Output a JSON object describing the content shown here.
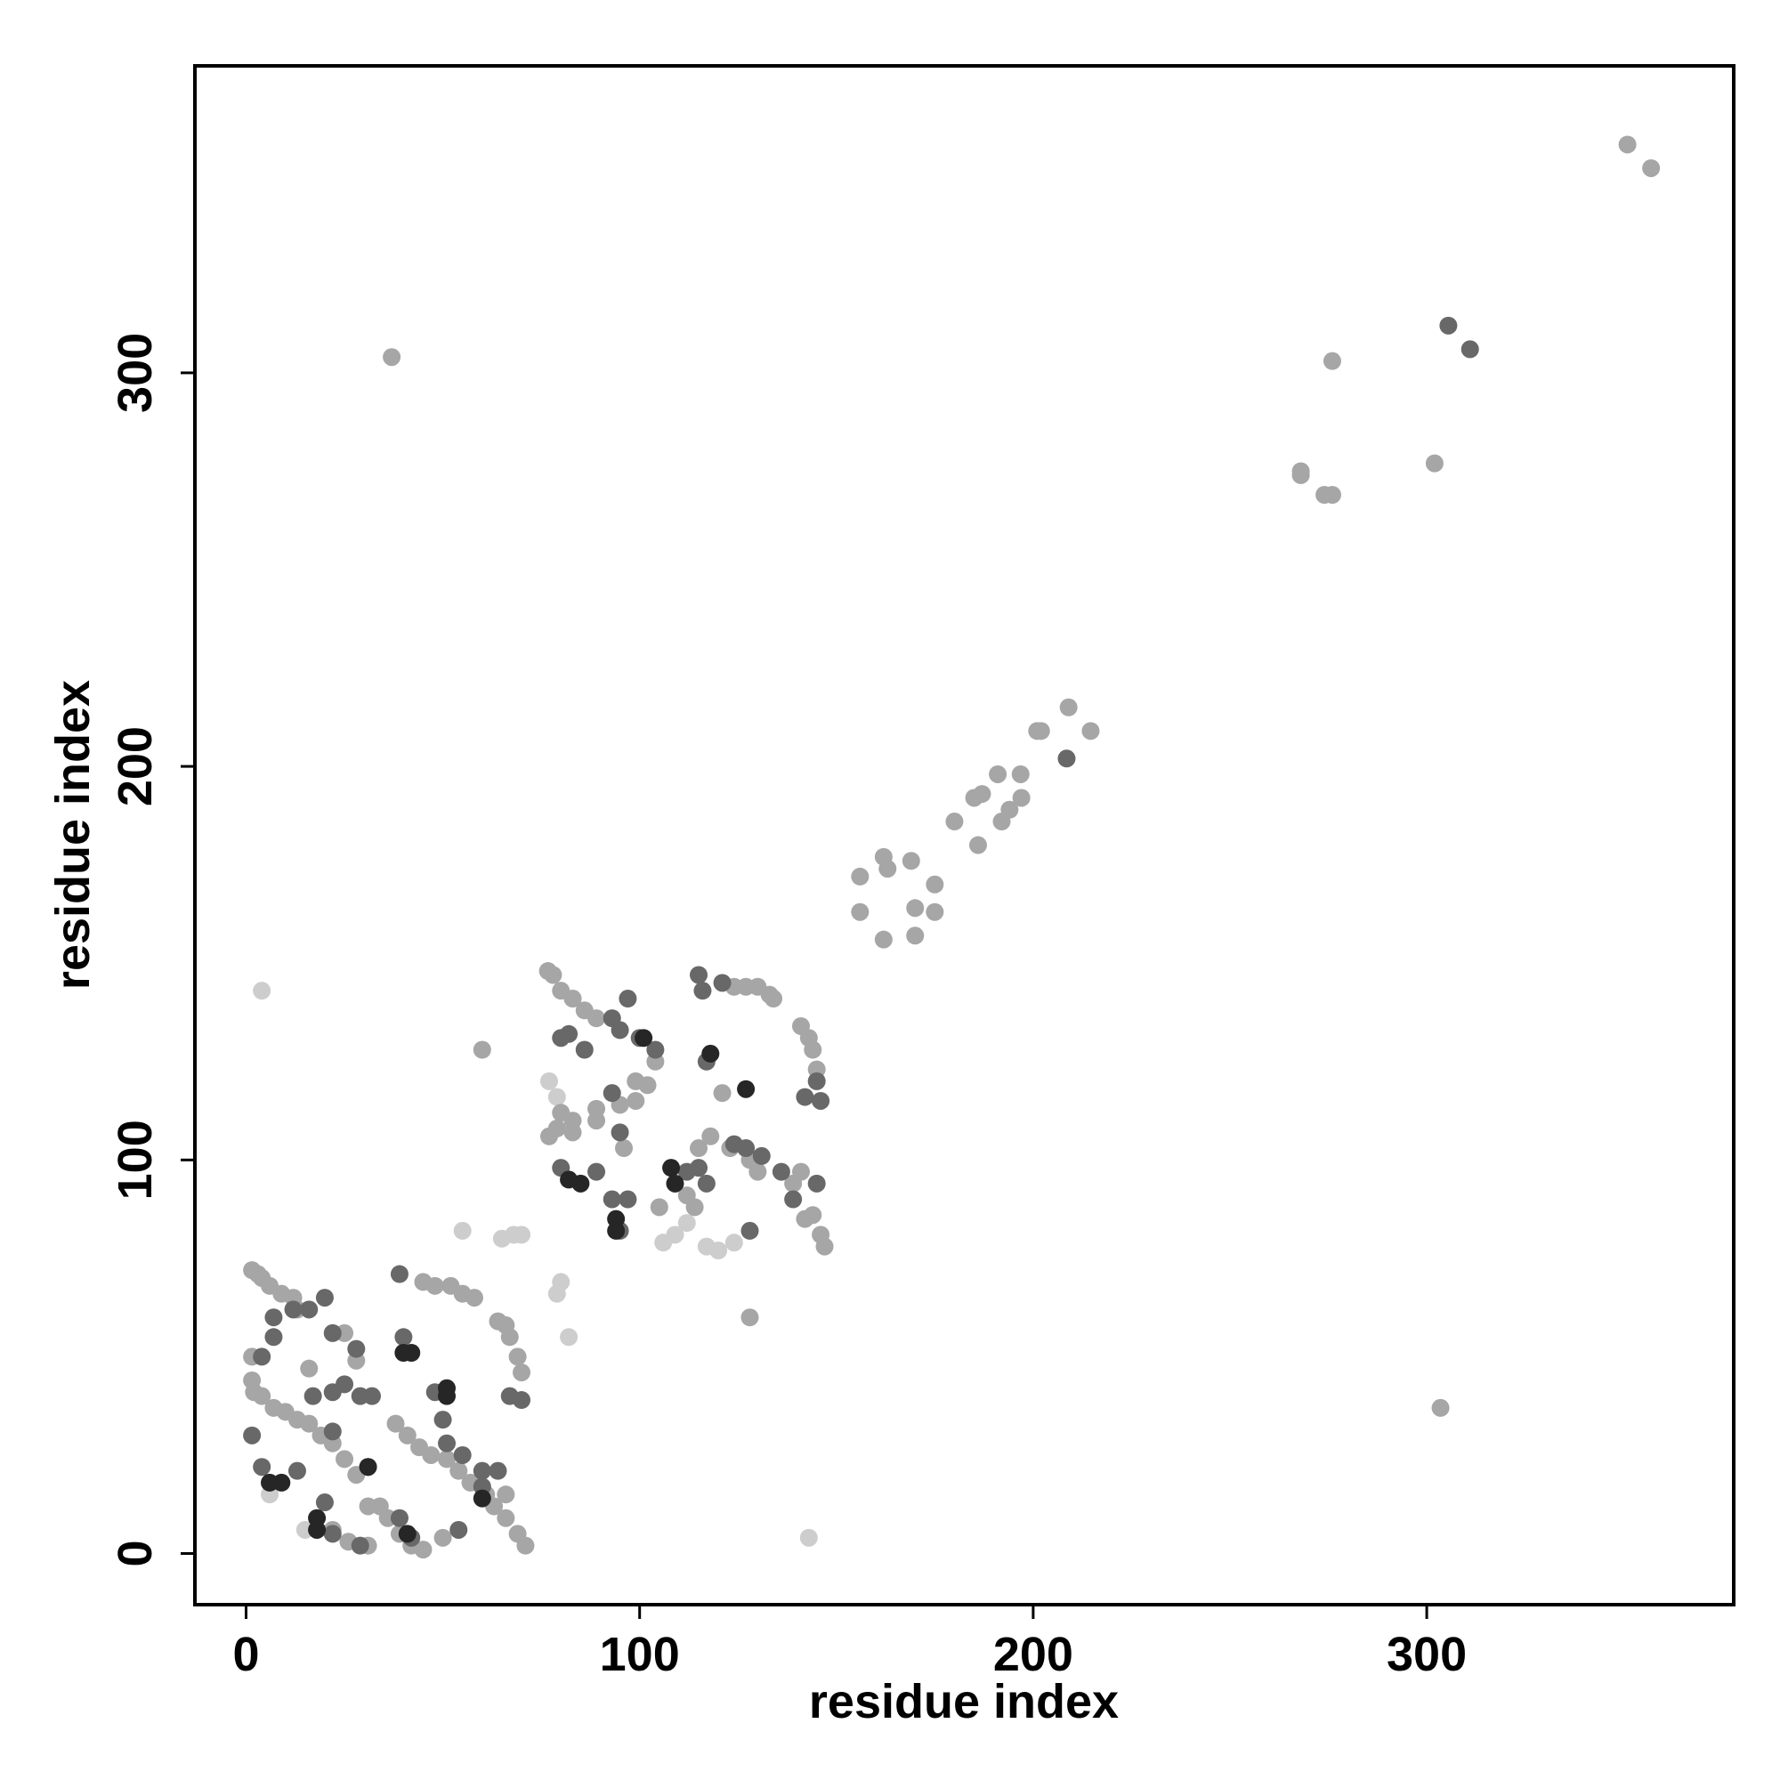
{
  "chart_data": {
    "type": "scatter",
    "x_label": "residue index",
    "y_label": "residue index",
    "xlim": [
      -13,
      378
    ],
    "ylim": [
      -13,
      378
    ],
    "xticks": [
      0,
      100,
      200,
      300
    ],
    "yticks": [
      0,
      100,
      200,
      300
    ],
    "series": [
      {
        "color": "#cdcdcd",
        "x": [
          55,
          65,
          68,
          70,
          79,
          80,
          82,
          143,
          4,
          15,
          6,
          112,
          109,
          106,
          120,
          117,
          83,
          77,
          79,
          124
        ],
        "y": [
          82,
          80,
          81,
          81,
          66,
          69,
          55,
          4,
          143,
          6,
          15,
          84,
          81,
          79,
          77,
          78,
          141,
          120,
          116,
          79
        ]
      },
      {
        "color": "#a6a6a6",
        "x": [
          351,
          357,
          37,
          276,
          302,
          268,
          274,
          276,
          268,
          209,
          201,
          202,
          214.6,
          196.8,
          191,
          187,
          185,
          180,
          186,
          197,
          194,
          192,
          162,
          163,
          169,
          175,
          156,
          156,
          162,
          170,
          170,
          175,
          76.7,
          78,
          80,
          83,
          86,
          89,
          80,
          83,
          89,
          95,
          99,
          77,
          79,
          83,
          115,
          118,
          123,
          128,
          130,
          141,
          139,
          142,
          144,
          146,
          147,
          141,
          143,
          144,
          145,
          130,
          133,
          134,
          124,
          127,
          99,
          102,
          104,
          112,
          114,
          121,
          105,
          96,
          89,
          60,
          128,
          303.5,
          1.5,
          3,
          4,
          6,
          9,
          12,
          13,
          1.5,
          1.5,
          2,
          4,
          7,
          10,
          13,
          16,
          19,
          22,
          25,
          28,
          31,
          34,
          36,
          39,
          42,
          45,
          50,
          38,
          41,
          44,
          47,
          51,
          54,
          57,
          61,
          63,
          66,
          69,
          71,
          45,
          48,
          52,
          55,
          58,
          64,
          66,
          67,
          69,
          70,
          25,
          28,
          16,
          22,
          26,
          31,
          66
        ],
        "y": [
          358,
          352,
          304,
          303,
          277,
          275,
          269,
          269,
          274,
          215,
          209,
          209,
          209,
          198,
          198,
          193,
          192,
          186,
          180,
          192,
          189,
          186,
          177,
          174,
          176,
          170,
          172,
          163,
          156,
          157,
          164,
          163,
          148,
          147,
          143,
          141,
          138,
          136,
          112,
          110,
          113,
          114,
          115,
          106,
          108,
          107,
          103,
          106,
          103,
          100,
          97,
          97,
          94,
          85,
          86,
          81,
          78,
          134,
          131,
          128,
          123,
          144,
          142,
          141,
          144,
          144,
          120,
          119,
          125,
          91,
          88,
          117,
          88,
          103,
          110,
          128,
          60,
          37,
          72,
          71,
          70,
          68,
          66,
          65,
          62,
          50,
          44,
          41,
          40,
          37,
          36,
          34,
          33,
          30,
          28,
          24,
          20,
          12,
          12,
          9,
          5,
          2,
          1,
          4,
          33,
          30,
          27,
          25,
          24,
          21,
          18,
          15,
          12,
          9,
          5,
          2,
          69,
          68,
          68,
          66,
          65,
          59,
          58,
          55,
          50,
          46,
          56,
          49,
          47,
          6,
          3,
          2,
          15
        ]
      },
      {
        "color": "#686868",
        "x": [
          305.5,
          311,
          208.5,
          80,
          82,
          86,
          93,
          97,
          95,
          100,
          104,
          93,
          95,
          80,
          93,
          97,
          89,
          115,
          117,
          124,
          127,
          131,
          136,
          139,
          145,
          142,
          145,
          146,
          115,
          116,
          121,
          128,
          95,
          112,
          117,
          7,
          16,
          20,
          22,
          28,
          7,
          4,
          1.5,
          4,
          13,
          17,
          22,
          25,
          29,
          32,
          22,
          31,
          39,
          42,
          54,
          51,
          55,
          60,
          64,
          60,
          39,
          40,
          48,
          50,
          67,
          70,
          20,
          22,
          29,
          12
        ],
        "y": [
          312,
          306,
          202,
          131,
          132,
          128,
          136,
          141,
          133,
          131,
          128,
          117,
          107,
          98,
          90,
          90,
          97,
          98,
          94,
          104,
          103,
          101,
          97,
          90,
          94,
          116,
          120,
          115,
          147,
          143,
          145,
          82,
          82,
          97,
          125,
          60,
          62,
          65,
          56,
          52,
          55,
          50,
          30,
          22,
          21,
          40,
          41,
          43,
          40,
          40,
          31,
          22,
          9,
          4,
          6,
          28,
          25,
          21,
          21,
          17,
          71,
          55,
          41,
          34,
          40,
          39,
          13,
          5,
          2,
          62
        ]
      },
      {
        "color": "#262626",
        "x": [
          118,
          127,
          108,
          109,
          82,
          85,
          94,
          94,
          101,
          6,
          9,
          18,
          18,
          42,
          40,
          51,
          51,
          41,
          31,
          60
        ],
        "y": [
          127,
          118,
          98,
          94,
          95,
          94,
          85,
          82,
          131,
          18,
          18,
          9,
          6,
          51,
          51,
          42,
          40,
          5,
          22,
          14
        ]
      }
    ]
  }
}
